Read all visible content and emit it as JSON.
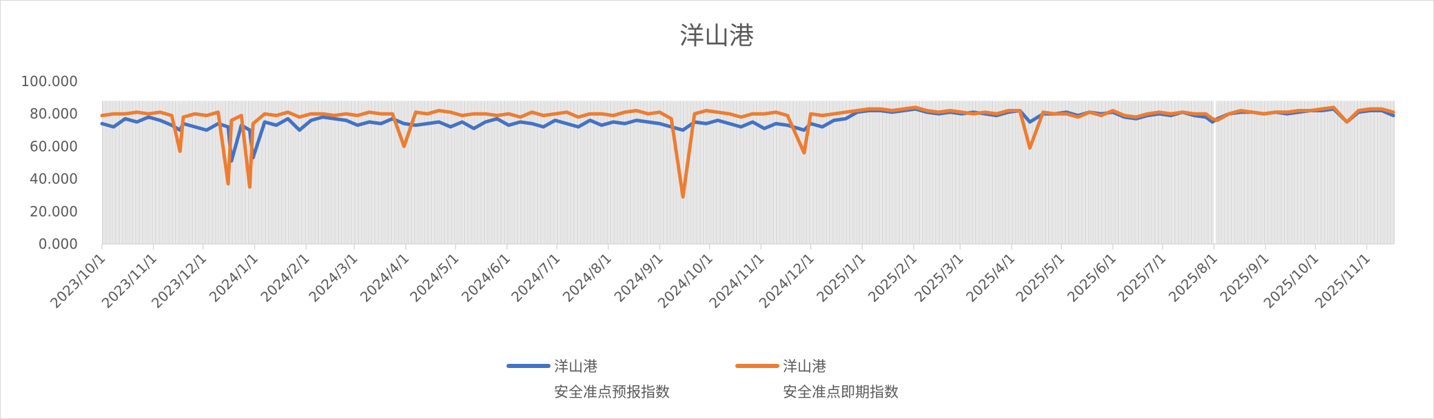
{
  "chart_data": {
    "type": "line",
    "title": "洋山港",
    "xlabel": "",
    "ylabel": "",
    "ylim": [
      0,
      100
    ],
    "y_ticks": [
      "0.000",
      "20.000",
      "40.000",
      "60.000",
      "80.000",
      "100.000"
    ],
    "x_range": [
      "2023/10/1",
      "2025/11/17"
    ],
    "x_ticks": [
      "2023/10/1",
      "2023/11/1",
      "2023/12/1",
      "2024/1/1",
      "2024/2/1",
      "2024/3/1",
      "2024/4/1",
      "2024/5/1",
      "2024/6/1",
      "2024/7/1",
      "2024/8/1",
      "2024/9/1",
      "2024/10/1",
      "2024/11/1",
      "2024/12/1",
      "2025/1/1",
      "2025/2/1",
      "2025/3/1",
      "2025/4/1",
      "2025/5/1",
      "2025/6/1",
      "2025/7/1",
      "2025/8/1",
      "2025/9/1",
      "2025/10/1",
      "2025/11/1"
    ],
    "grid": false,
    "legend_position": "bottom",
    "background_columns": {
      "value": 88,
      "color": "#d9d9d9",
      "missing_dates": [
        "2025/8/1"
      ]
    },
    "series": [
      {
        "name_line1": "洋山港",
        "name_line2": "安全准点预报指数",
        "color": "#4472c4"
      },
      {
        "name_line1": "洋山港",
        "name_line2": "安全准点即期指数",
        "color": "#ed7d31"
      }
    ],
    "points": [
      [
        "2023/10/1",
        74,
        79
      ],
      [
        "2023/10/8",
        72,
        80
      ],
      [
        "2023/10/15",
        77,
        80
      ],
      [
        "2023/10/22",
        75,
        81
      ],
      [
        "2023/10/29",
        78,
        80
      ],
      [
        "2023/11/5",
        76,
        81
      ],
      [
        "2023/11/12",
        73,
        79
      ],
      [
        "2023/11/17",
        70,
        57
      ],
      [
        "2023/11/19",
        74,
        78
      ],
      [
        "2023/11/26",
        72,
        80
      ],
      [
        "2023/12/3",
        70,
        79
      ],
      [
        "2023/12/10",
        74,
        81
      ],
      [
        "2023/12/16",
        72,
        37
      ],
      [
        "2023/12/18",
        51,
        76
      ],
      [
        "2023/12/24",
        73,
        79
      ],
      [
        "2023/12/29",
        70,
        35
      ],
      [
        "2023/12/31",
        53,
        74
      ],
      [
        "2024/1/7",
        75,
        80
      ],
      [
        "2024/1/14",
        73,
        79
      ],
      [
        "2024/1/21",
        77,
        81
      ],
      [
        "2024/1/28",
        70,
        78
      ],
      [
        "2024/2/4",
        76,
        80
      ],
      [
        "2024/2/11",
        78,
        80
      ],
      [
        "2024/2/18",
        77,
        79
      ],
      [
        "2024/2/25",
        76,
        80
      ],
      [
        "2024/3/3",
        73,
        79
      ],
      [
        "2024/3/10",
        75,
        81
      ],
      [
        "2024/3/17",
        74,
        80
      ],
      [
        "2024/3/24",
        77,
        80
      ],
      [
        "2024/3/31",
        74,
        60
      ],
      [
        "2024/4/7",
        73,
        81
      ],
      [
        "2024/4/14",
        74,
        80
      ],
      [
        "2024/4/21",
        75,
        82
      ],
      [
        "2024/4/28",
        72,
        81
      ],
      [
        "2024/5/5",
        75,
        79
      ],
      [
        "2024/5/12",
        71,
        80
      ],
      [
        "2024/5/19",
        75,
        80
      ],
      [
        "2024/5/26",
        77,
        79
      ],
      [
        "2024/6/2",
        73,
        80
      ],
      [
        "2024/6/9",
        75,
        78
      ],
      [
        "2024/6/16",
        74,
        81
      ],
      [
        "2024/6/23",
        72,
        79
      ],
      [
        "2024/6/30",
        76,
        80
      ],
      [
        "2024/7/7",
        74,
        81
      ],
      [
        "2024/7/14",
        72,
        78
      ],
      [
        "2024/7/21",
        76,
        80
      ],
      [
        "2024/7/28",
        73,
        80
      ],
      [
        "2024/8/4",
        75,
        79
      ],
      [
        "2024/8/11",
        74,
        81
      ],
      [
        "2024/8/18",
        76,
        82
      ],
      [
        "2024/8/25",
        75,
        80
      ],
      [
        "2024/9/1",
        74,
        81
      ],
      [
        "2024/9/8",
        72,
        77
      ],
      [
        "2024/9/15",
        70,
        29
      ],
      [
        "2024/9/22",
        75,
        80
      ],
      [
        "2024/9/29",
        74,
        82
      ],
      [
        "2024/10/6",
        76,
        81
      ],
      [
        "2024/10/13",
        74,
        80
      ],
      [
        "2024/10/20",
        72,
        78
      ],
      [
        "2024/10/27",
        75,
        80
      ],
      [
        "2024/11/3",
        71,
        80
      ],
      [
        "2024/11/10",
        74,
        81
      ],
      [
        "2024/11/17",
        73,
        79
      ],
      [
        "2024/11/27",
        70,
        56
      ],
      [
        "2024/12/1",
        74,
        80
      ],
      [
        "2024/12/8",
        72,
        79
      ],
      [
        "2024/12/15",
        76,
        80
      ],
      [
        "2024/12/22",
        77,
        81
      ],
      [
        "2024/12/29",
        81,
        82
      ],
      [
        "2025/1/5",
        82,
        83
      ],
      [
        "2025/1/12",
        82,
        83
      ],
      [
        "2025/1/19",
        81,
        82
      ],
      [
        "2025/1/26",
        82,
        83
      ],
      [
        "2025/2/2",
        83,
        84
      ],
      [
        "2025/2/9",
        81,
        82
      ],
      [
        "2025/2/16",
        80,
        81
      ],
      [
        "2025/2/23",
        81,
        82
      ],
      [
        "2025/3/2",
        80,
        81
      ],
      [
        "2025/3/9",
        81,
        80
      ],
      [
        "2025/3/16",
        80,
        81
      ],
      [
        "2025/3/23",
        79,
        80
      ],
      [
        "2025/3/30",
        81,
        82
      ],
      [
        "2025/4/6",
        82,
        82
      ],
      [
        "2025/4/12",
        75,
        59
      ],
      [
        "2025/4/20",
        80,
        81
      ],
      [
        "2025/4/27",
        80,
        80
      ],
      [
        "2025/5/4",
        81,
        80
      ],
      [
        "2025/5/11",
        79,
        78
      ],
      [
        "2025/5/18",
        81,
        81
      ],
      [
        "2025/5/25",
        80,
        79
      ],
      [
        "2025/6/1",
        81,
        82
      ],
      [
        "2025/6/8",
        78,
        79
      ],
      [
        "2025/6/15",
        77,
        78
      ],
      [
        "2025/6/22",
        79,
        80
      ],
      [
        "2025/6/29",
        80,
        81
      ],
      [
        "2025/7/6",
        79,
        80
      ],
      [
        "2025/7/13",
        81,
        81
      ],
      [
        "2025/7/20",
        79,
        80
      ],
      [
        "2025/7/27",
        78,
        80
      ],
      [
        "2025/7/31",
        75,
        77
      ],
      [
        "2025/8/3",
        77,
        76
      ],
      [
        "2025/8/10",
        80,
        80
      ],
      [
        "2025/8/17",
        81,
        82
      ],
      [
        "2025/8/24",
        81,
        81
      ],
      [
        "2025/8/31",
        80,
        80
      ],
      [
        "2025/9/7",
        81,
        81
      ],
      [
        "2025/9/14",
        80,
        81
      ],
      [
        "2025/9/21",
        81,
        82
      ],
      [
        "2025/9/28",
        82,
        82
      ],
      [
        "2025/10/5",
        82,
        83
      ],
      [
        "2025/10/12",
        83,
        84
      ],
      [
        "2025/10/20",
        75,
        75
      ],
      [
        "2025/10/27",
        81,
        82
      ],
      [
        "2025/11/3",
        82,
        83
      ],
      [
        "2025/11/10",
        82,
        83
      ],
      [
        "2025/11/17",
        79,
        81
      ]
    ]
  }
}
